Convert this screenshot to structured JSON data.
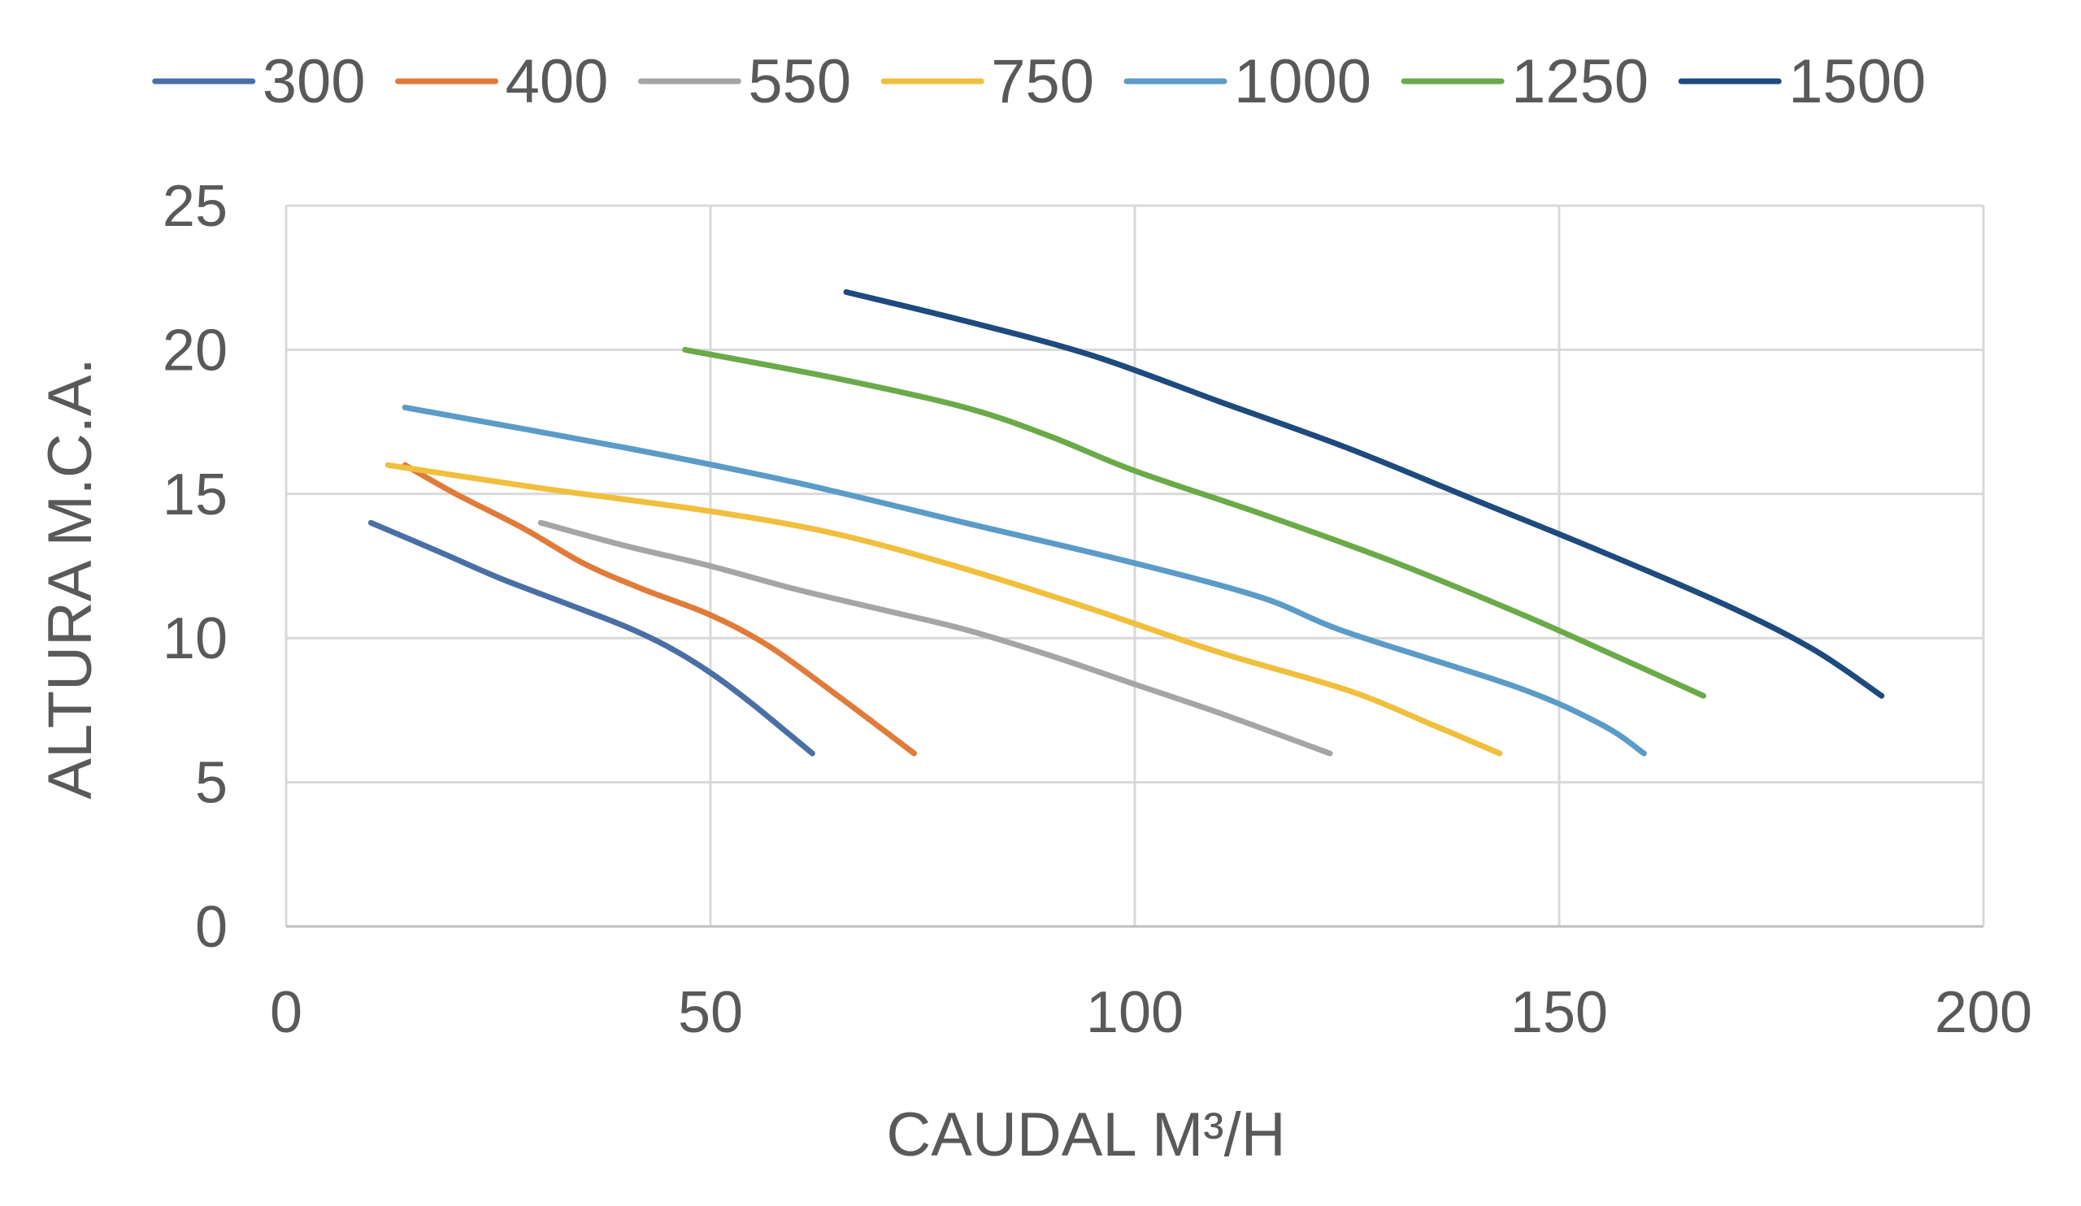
{
  "chart_data": {
    "type": "line",
    "title": "",
    "xlabel": "CAUDAL M³/H",
    "ylabel": "ALTURA M.C.A.",
    "xlim": [
      0,
      200
    ],
    "ylim": [
      0,
      25
    ],
    "x_ticks": [
      "0",
      "50",
      "100",
      "150",
      "200"
    ],
    "y_ticks": [
      "0",
      "5",
      "10",
      "15",
      "20",
      "25"
    ],
    "grid": true,
    "legend_position": "top",
    "series": [
      {
        "name": "300",
        "color": "#4a6fa5",
        "points": [
          [
            10,
            14
          ],
          [
            18,
            13
          ],
          [
            25,
            12.1
          ],
          [
            33,
            11.2
          ],
          [
            40,
            10.4
          ],
          [
            45,
            9.7
          ],
          [
            50,
            8.8
          ],
          [
            55,
            7.7
          ],
          [
            62,
            6
          ]
        ]
      },
      {
        "name": "400",
        "color": "#e07b39",
        "points": [
          [
            14,
            16
          ],
          [
            20,
            15
          ],
          [
            28,
            13.8
          ],
          [
            35,
            12.6
          ],
          [
            42,
            11.7
          ],
          [
            50,
            10.8
          ],
          [
            57,
            9.7
          ],
          [
            65,
            8
          ],
          [
            74,
            6
          ]
        ]
      },
      {
        "name": "550",
        "color": "#a5a5a5",
        "points": [
          [
            30,
            14
          ],
          [
            40,
            13.2
          ],
          [
            50,
            12.5
          ],
          [
            60,
            11.7
          ],
          [
            70,
            11
          ],
          [
            80,
            10.3
          ],
          [
            90,
            9.4
          ],
          [
            100,
            8.4
          ],
          [
            110,
            7.4
          ],
          [
            123,
            6
          ]
        ]
      },
      {
        "name": "750",
        "color": "#f0bf3c",
        "points": [
          [
            12,
            16
          ],
          [
            30,
            15.2
          ],
          [
            50,
            14.4
          ],
          [
            65,
            13.6
          ],
          [
            80,
            12.4
          ],
          [
            95,
            11
          ],
          [
            110,
            9.5
          ],
          [
            125,
            8.2
          ],
          [
            135,
            7
          ],
          [
            143,
            6
          ]
        ]
      },
      {
        "name": "1000",
        "color": "#5b9bc7",
        "points": [
          [
            14,
            18
          ],
          [
            40,
            16.6
          ],
          [
            60,
            15.4
          ],
          [
            80,
            14
          ],
          [
            100,
            12.6
          ],
          [
            115,
            11.4
          ],
          [
            125,
            10.2
          ],
          [
            145,
            8.3
          ],
          [
            155,
            7
          ],
          [
            160,
            6
          ]
        ]
      },
      {
        "name": "1250",
        "color": "#6aaa48",
        "points": [
          [
            47,
            20
          ],
          [
            65,
            19
          ],
          [
            80,
            18
          ],
          [
            90,
            17
          ],
          [
            100,
            15.8
          ],
          [
            115,
            14.3
          ],
          [
            130,
            12.7
          ],
          [
            145,
            10.9
          ],
          [
            155,
            9.6
          ],
          [
            167,
            8
          ]
        ]
      },
      {
        "name": "1500",
        "color": "#1e4a7d",
        "points": [
          [
            66,
            22
          ],
          [
            80,
            21
          ],
          [
            95,
            19.8
          ],
          [
            110,
            18.2
          ],
          [
            125,
            16.6
          ],
          [
            140,
            14.8
          ],
          [
            155,
            13
          ],
          [
            170,
            11.1
          ],
          [
            180,
            9.6
          ],
          [
            188,
            8
          ]
        ]
      }
    ]
  }
}
